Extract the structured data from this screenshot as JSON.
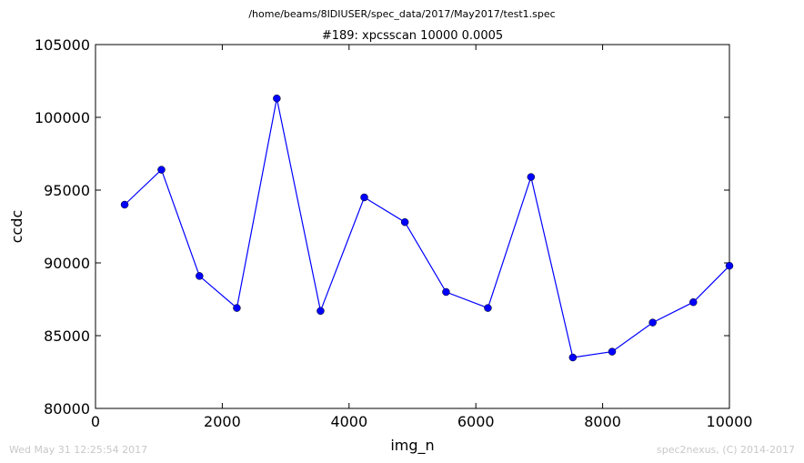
{
  "figure": {
    "suptitle": "/home/beams/8IDIUSER/spec_data/2017/May2017/test1.spec",
    "timestamp": "Wed May 31 12:25:54 2017",
    "credit": "spec2nexus, (C) 2014-2017"
  },
  "chart_data": {
    "type": "line",
    "title": "#189: xpcsscan 10000 0.0005",
    "xlabel": "img_n",
    "ylabel": "ccdc",
    "xlim": [
      0,
      10000
    ],
    "ylim": [
      80000,
      105000
    ],
    "xticks": [
      "0",
      "2000",
      "4000",
      "6000",
      "8000",
      "10000"
    ],
    "yticks": [
      "80000",
      "85000",
      "90000",
      "95000",
      "100000",
      "105000"
    ],
    "grid": false,
    "marker": "circle",
    "color": "#0000ff",
    "series": [
      {
        "x": [
          460,
          1040,
          1640,
          2230,
          2860,
          3550,
          4240,
          4880,
          5530,
          6190,
          6870,
          7530,
          8150,
          8790,
          9430,
          10000
        ],
        "y": [
          94000,
          96400,
          89100,
          86900,
          101300,
          86700,
          94500,
          92800,
          88000,
          86900,
          95900,
          83500,
          83900,
          85900,
          87300,
          89800
        ]
      }
    ]
  }
}
